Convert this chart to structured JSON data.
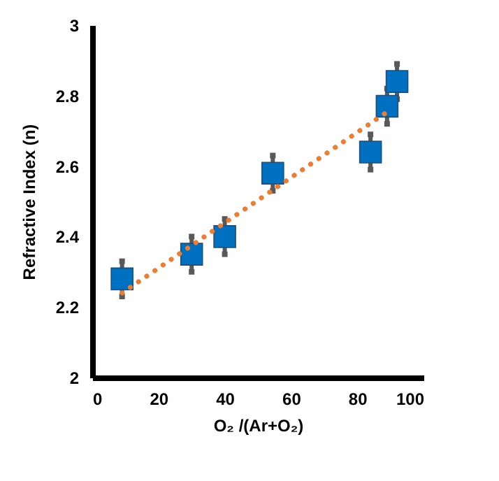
{
  "chart_data": {
    "type": "scatter",
    "xlabel": "O₂ /(Ar+O₂)",
    "ylabel": "Refractive Index (n)",
    "xlim": [
      0,
      100
    ],
    "xticks": [
      0,
      20,
      40,
      60,
      80,
      100
    ],
    "ylim": [
      2,
      3
    ],
    "yticks": [
      2,
      2.2,
      2.4,
      2.6,
      2.8,
      3
    ],
    "grid": false,
    "series": [
      {
        "color": "#0070c0",
        "marker": "square",
        "x": [
          9,
          30,
          40,
          54.5,
          84,
          89,
          92
        ],
        "values": [
          2.28,
          2.35,
          2.4,
          2.58,
          2.64,
          2.77,
          2.84
        ],
        "errors": [
          0.05,
          0.05,
          0.05,
          0.05,
          0.05,
          0.05,
          0.05
        ]
      },
      {
        "type": "line",
        "color": "#ed7d31",
        "line_style": "dotted",
        "x": [
          9,
          90
        ],
        "values": [
          2.24,
          2.76
        ]
      }
    ]
  }
}
